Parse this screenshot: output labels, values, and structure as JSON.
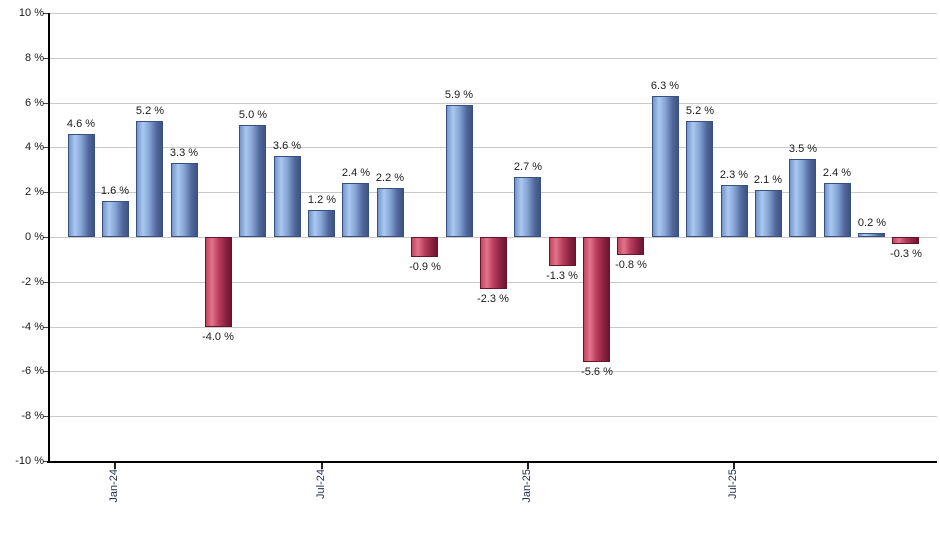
{
  "chart_data": {
    "type": "bar",
    "title": "",
    "xlabel": "",
    "ylabel": "",
    "ylim": [
      -10,
      10
    ],
    "grid": true,
    "legend": false,
    "y_axis": {
      "ticks": [
        {
          "label": "10 %",
          "value": 10
        },
        {
          "label": "8 %",
          "value": 8
        },
        {
          "label": "6 %",
          "value": 6
        },
        {
          "label": "4 %",
          "value": 4
        },
        {
          "label": "2 %",
          "value": 2
        },
        {
          "label": "0 %",
          "value": 0
        },
        {
          "label": "-2 %",
          "value": -2
        },
        {
          "label": "-4 %",
          "value": -4
        },
        {
          "label": "-6 %",
          "value": -6
        },
        {
          "label": "-8 %",
          "value": -8
        },
        {
          "label": "-10 %",
          "value": -10
        }
      ]
    },
    "x_axis": {
      "ticks": [
        {
          "label": "Jan-24",
          "bar_index": 1
        },
        {
          "label": "Jul-24",
          "bar_index": 7
        },
        {
          "label": "Jan-25",
          "bar_index": 13
        },
        {
          "label": "Jul-25",
          "bar_index": 19
        }
      ]
    },
    "bars": [
      {
        "value": 4.6,
        "label": "4.6 %"
      },
      {
        "value": 1.6,
        "label": "1.6 %"
      },
      {
        "value": 5.2,
        "label": "5.2 %"
      },
      {
        "value": 3.3,
        "label": "3.3 %"
      },
      {
        "value": -4.0,
        "label": "-4.0 %"
      },
      {
        "value": 5.0,
        "label": "5.0 %"
      },
      {
        "value": 3.6,
        "label": "3.6 %"
      },
      {
        "value": 1.2,
        "label": "1.2 %"
      },
      {
        "value": 2.4,
        "label": "2.4 %"
      },
      {
        "value": 2.2,
        "label": "2.2 %"
      },
      {
        "value": -0.9,
        "label": "-0.9 %"
      },
      {
        "value": 5.9,
        "label": "5.9 %"
      },
      {
        "value": -2.3,
        "label": "-2.3 %"
      },
      {
        "value": 2.7,
        "label": "2.7 %"
      },
      {
        "value": -1.3,
        "label": "-1.3 %"
      },
      {
        "value": -5.6,
        "label": "-5.6 %"
      },
      {
        "value": -0.8,
        "label": "-0.8 %"
      },
      {
        "value": 6.3,
        "label": "6.3 %"
      },
      {
        "value": 5.2,
        "label": "5.2 %"
      },
      {
        "value": 2.3,
        "label": "2.3 %"
      },
      {
        "value": 2.1,
        "label": "2.1 %"
      },
      {
        "value": 3.5,
        "label": "3.5 %"
      },
      {
        "value": 2.4,
        "label": "2.4 %"
      },
      {
        "value": 0.2,
        "label": "0.2 %"
      },
      {
        "value": -0.3,
        "label": "-0.3 %"
      }
    ],
    "colors": {
      "positive_edge": "#7496cb",
      "positive_highlight": "#aac8f0",
      "positive_dark": "#3d5383",
      "positive_border": "#36507f",
      "negative_edge": "#c34561",
      "negative_highlight": "#e1758d",
      "negative_dark": "#6d1530",
      "negative_border": "#69132d",
      "gridline": "#c9c9c9",
      "axis": "#000000",
      "text": "#1a1a1a"
    }
  }
}
